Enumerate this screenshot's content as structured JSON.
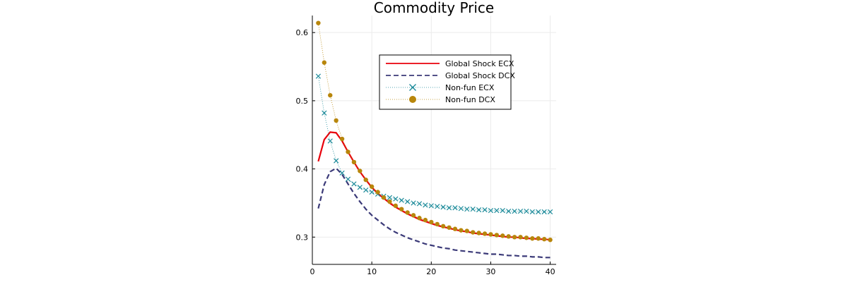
{
  "chart_data": {
    "type": "line",
    "title": "Commodity Price",
    "xlabel": "",
    "ylabel": "",
    "xlim": [
      0,
      41
    ],
    "ylim": [
      0.26,
      0.625
    ],
    "x_ticks": [
      0,
      10,
      20,
      30,
      40
    ],
    "y_ticks": [
      0.3,
      0.4,
      0.5,
      0.6
    ],
    "x_tick_labels": [
      "0",
      "10",
      "20",
      "30",
      "40"
    ],
    "y_tick_labels": [
      "0.3",
      "0.4",
      "0.5",
      "0.6"
    ],
    "grid": true,
    "legend_position": "top-right",
    "x": [
      1,
      2,
      3,
      4,
      5,
      6,
      7,
      8,
      9,
      10,
      11,
      12,
      13,
      14,
      15,
      16,
      17,
      18,
      19,
      20,
      21,
      22,
      23,
      24,
      25,
      26,
      27,
      28,
      29,
      30,
      31,
      32,
      33,
      34,
      35,
      36,
      37,
      38,
      39,
      40
    ],
    "series": [
      {
        "name": "Global Shock ECX",
        "style": "solid",
        "marker": "none",
        "color": "#e8000b",
        "values": [
          0.411,
          0.443,
          0.454,
          0.453,
          0.441,
          0.425,
          0.41,
          0.396,
          0.384,
          0.373,
          0.364,
          0.357,
          0.35,
          0.344,
          0.339,
          0.334,
          0.33,
          0.326,
          0.323,
          0.32,
          0.317,
          0.315,
          0.313,
          0.311,
          0.309,
          0.308,
          0.306,
          0.305,
          0.304,
          0.303,
          0.302,
          0.301,
          0.3,
          0.3,
          0.299,
          0.298,
          0.298,
          0.297,
          0.297,
          0.296
        ]
      },
      {
        "name": "Global Shock DCX",
        "style": "dashed",
        "marker": "none",
        "color": "#3b3a78",
        "values": [
          0.342,
          0.377,
          0.396,
          0.401,
          0.392,
          0.378,
          0.364,
          0.352,
          0.341,
          0.332,
          0.325,
          0.318,
          0.312,
          0.307,
          0.303,
          0.299,
          0.296,
          0.293,
          0.29,
          0.288,
          0.286,
          0.284,
          0.283,
          0.281,
          0.28,
          0.279,
          0.278,
          0.277,
          0.276,
          0.275,
          0.275,
          0.274,
          0.273,
          0.273,
          0.272,
          0.272,
          0.271,
          0.271,
          0.27,
          0.27
        ]
      },
      {
        "name": "Non-fun ECX",
        "style": "dotted",
        "marker": "x",
        "color": "#1d8b9a",
        "values": [
          0.536,
          0.482,
          0.441,
          0.412,
          0.394,
          0.385,
          0.378,
          0.373,
          0.369,
          0.366,
          0.363,
          0.36,
          0.358,
          0.356,
          0.354,
          0.352,
          0.35,
          0.349,
          0.347,
          0.346,
          0.345,
          0.344,
          0.343,
          0.343,
          0.342,
          0.341,
          0.341,
          0.34,
          0.34,
          0.339,
          0.339,
          0.339,
          0.338,
          0.338,
          0.338,
          0.338,
          0.337,
          0.337,
          0.337,
          0.337
        ]
      },
      {
        "name": "Non-fun DCX",
        "style": "dotted",
        "marker": "circle",
        "color": "#b8860b",
        "values": [
          0.614,
          0.556,
          0.508,
          0.471,
          0.444,
          0.425,
          0.41,
          0.397,
          0.384,
          0.374,
          0.366,
          0.358,
          0.352,
          0.346,
          0.341,
          0.336,
          0.332,
          0.328,
          0.325,
          0.322,
          0.319,
          0.316,
          0.314,
          0.312,
          0.31,
          0.309,
          0.307,
          0.306,
          0.305,
          0.304,
          0.303,
          0.302,
          0.301,
          0.3,
          0.3,
          0.299,
          0.298,
          0.298,
          0.297,
          0.296
        ]
      }
    ]
  }
}
